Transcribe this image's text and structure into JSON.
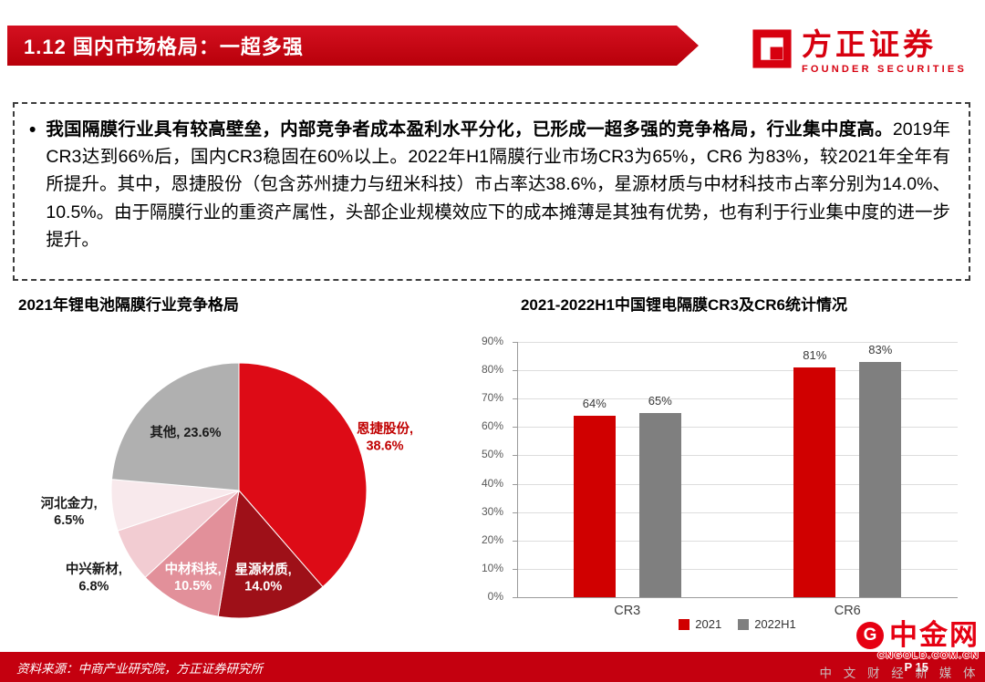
{
  "header": {
    "banner_title": "1.12 国内市场格局：一超多强",
    "logo_name": "方正证券",
    "logo_subtitle": "FOUNDER SECURITIES"
  },
  "summary": {
    "bullet": "•",
    "lead_bold": "我国隔膜行业具有较高壁垒，内部竞争者成本盈利水平分化，已形成一超多强的竞争格局，行业集中度高。",
    "body": "2019年CR3达到66%后，国内CR3稳固在60%以上。2022年H1隔膜行业市场CR3为65%，CR6 为83%，较2021年全年有所提升。其中，恩捷股份（包含苏州捷力与纽米科技）市占率达38.6%，星源材质与中材科技市占率分别为14.0%、10.5%。由于隔膜行业的重资产属性，头部企业规模效应下的成本摊薄是其独有优势，也有利于行业集中度的进一步提升。"
  },
  "chart_data": [
    {
      "type": "pie",
      "title": "2021年锂电池隔膜行业竞争格局",
      "slices": [
        {
          "label": "恩捷股份",
          "value": 38.6,
          "color": "#dd0b16",
          "label_lines": [
            "恩捷股份,",
            "38.6%"
          ],
          "label_color": "#c00000",
          "label_r": 1.22
        },
        {
          "label": "星源材质",
          "value": 14.0,
          "color": "#9e1018",
          "label_lines": [
            "星源材质,",
            "14.0%"
          ],
          "label_color": "#ffffff",
          "label_r": 0.7
        },
        {
          "label": "中材科技",
          "value": 10.5,
          "color": "#e2909a",
          "label_lines": [
            "中材科技,",
            "10.5%"
          ],
          "label_color": "#ffffff",
          "label_r": 0.76
        },
        {
          "label": "中兴新材",
          "value": 6.8,
          "color": "#f2ccd2",
          "label_lines": [
            "中兴新材,",
            "6.8%"
          ],
          "label_color": "#1a1a1a",
          "label_r": 1.32
        },
        {
          "label": "河北金力",
          "value": 6.5,
          "color": "#f8e9ec",
          "label_lines": [
            "河北金力,",
            "6.5%"
          ],
          "label_color": "#1a1a1a",
          "label_r": 1.34
        },
        {
          "label": "其他",
          "value": 23.6,
          "color": "#b0b0b0",
          "label_lines": [
            "其他, 23.6%"
          ],
          "label_color": "#1a1a1a",
          "label_r": 0.62
        }
      ]
    },
    {
      "type": "bar",
      "title": "2021-2022H1中国锂电隔膜CR3及CR6统计情况",
      "categories": [
        "CR3",
        "CR6"
      ],
      "series": [
        {
          "name": "2021",
          "color": "#d00000",
          "values": [
            64,
            81
          ],
          "labels": [
            "64%",
            "81%"
          ]
        },
        {
          "name": "2022H1",
          "color": "#7f7f7f",
          "values": [
            65,
            83
          ],
          "labels": [
            "65%",
            "83%"
          ]
        }
      ],
      "ylim": [
        0,
        90
      ],
      "ytick_step": 10,
      "ytick_suffix": "%",
      "grid": true,
      "legend_position": "bottom"
    }
  ],
  "footer": {
    "source": "资料来源：中商产业研究院，方正证券研究所",
    "page": "P 15"
  },
  "watermark": {
    "brand": "中金网",
    "site": "CNGOLD.COM.CN",
    "tagline": "中 文 财 经 新 媒 体",
    "logo_letter": "G"
  }
}
